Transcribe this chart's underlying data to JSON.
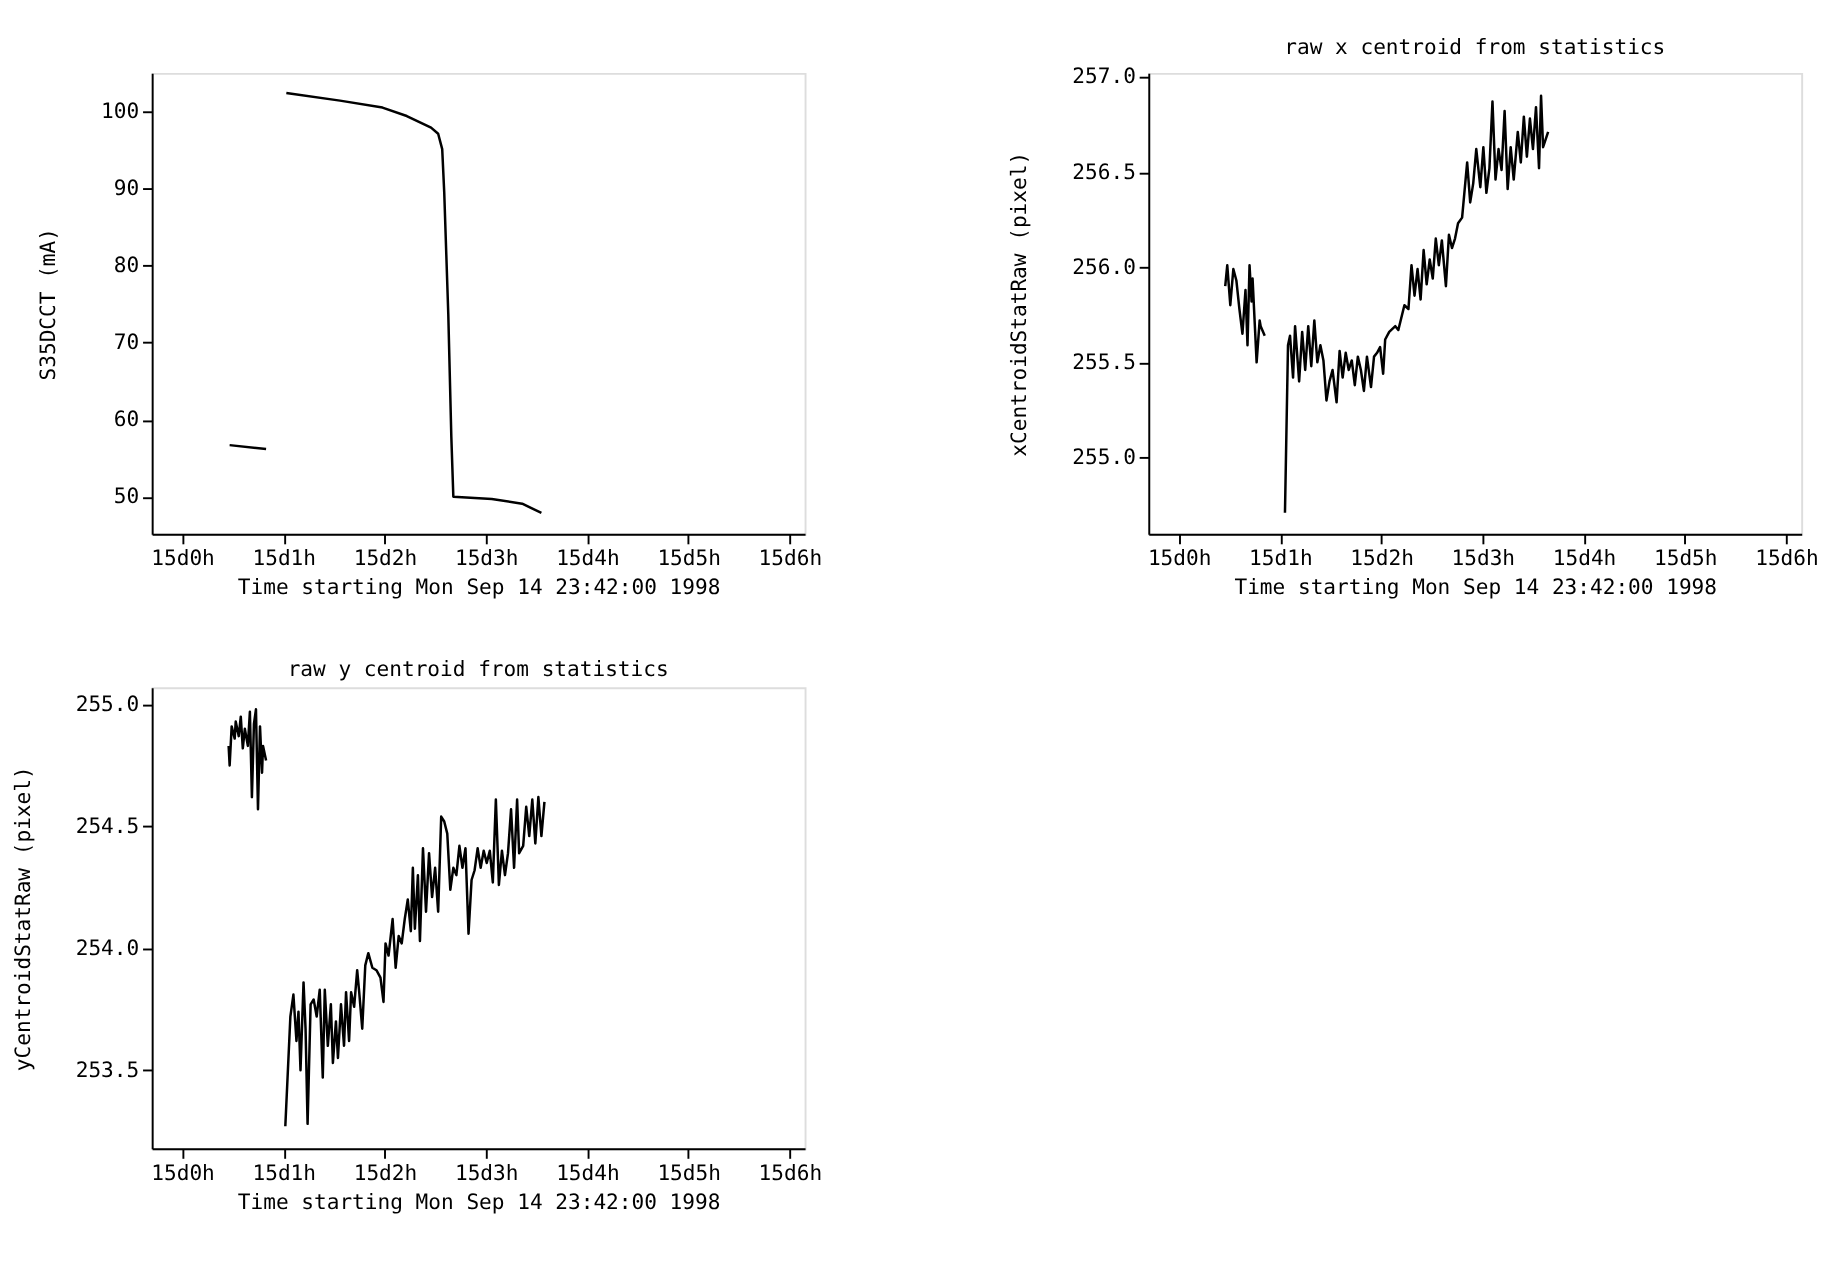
{
  "chart_data": [
    {
      "type": "line",
      "xlabel": "Time starting Mon Sep 14 23:42:00 1998",
      "ylabel": "S35DCCT (mA)",
      "xlim": [
        "1998-09-14T23:42",
        "1998-09-15T06:09"
      ],
      "ylim": [
        45.2,
        105
      ],
      "xticks": [
        {
          "value": "1998-09-15T00:00",
          "label": "15d0h"
        },
        {
          "value": "1998-09-15T01:00",
          "label": "15d1h"
        },
        {
          "value": "1998-09-15T02:00",
          "label": "15d2h"
        },
        {
          "value": "1998-09-15T03:00",
          "label": "15d3h"
        },
        {
          "value": "1998-09-15T04:00",
          "label": "15d4h"
        },
        {
          "value": "1998-09-15T05:00",
          "label": "15d5h"
        },
        {
          "value": "1998-09-15T06:00",
          "label": "15d6h"
        }
      ],
      "yticks": [
        50,
        60,
        70,
        80,
        90,
        100
      ],
      "grid": false,
      "legend": false,
      "marker": "none",
      "line_style": "solid",
      "series": [
        {
          "color": "#000000",
          "x": [
            "1998-09-15T00:28:12",
            "1998-09-15T00:49:48"
          ],
          "values": [
            56.7,
            56.2
          ]
        },
        {
          "color": "#000000",
          "x": [
            "1998-09-15T01:01:48",
            "1998-09-15T01:33:36",
            "1998-09-15T01:58:48",
            "1998-09-15T02:13:12",
            "1998-09-15T02:27:36",
            "1998-09-15T02:31:48",
            "1998-09-15T02:34:12",
            "1998-09-15T02:35:24",
            "1998-09-15T02:37:48",
            "1998-09-15T02:39:36",
            "1998-09-15T02:40:48",
            "1998-09-15T03:03:36",
            "1998-09-15T03:21:36",
            "1998-09-15T03:33:00"
          ],
          "values": [
            102.4,
            101.4,
            100.5,
            99.4,
            97.9,
            97.1,
            95.1,
            89.5,
            73.7,
            57.8,
            50.0,
            49.7,
            49.1,
            47.9
          ]
        }
      ]
    },
    {
      "type": "line",
      "title": "raw x centroid from statistics",
      "xlabel": "Time starting Mon Sep 14 23:42:00 1998",
      "ylabel": "xCentroidStatRaw (pixel)",
      "xlim": [
        "1998-09-14T23:42",
        "1998-09-15T06:09"
      ],
      "ylim": [
        254.6,
        257.02
      ],
      "xticks": [
        {
          "value": "1998-09-15T00:00",
          "label": "15d0h"
        },
        {
          "value": "1998-09-15T01:00",
          "label": "15d1h"
        },
        {
          "value": "1998-09-15T02:00",
          "label": "15d2h"
        },
        {
          "value": "1998-09-15T03:00",
          "label": "15d3h"
        },
        {
          "value": "1998-09-15T04:00",
          "label": "15d4h"
        },
        {
          "value": "1998-09-15T05:00",
          "label": "15d5h"
        },
        {
          "value": "1998-09-15T06:00",
          "label": "15d6h"
        }
      ],
      "yticks": [
        {
          "value": 255,
          "label": "255.0"
        },
        {
          "value": 255.5,
          "label": "255.5"
        },
        {
          "value": 256,
          "label": "256.0"
        },
        {
          "value": 256.5,
          "label": "256.5"
        },
        {
          "value": 257,
          "label": "257.0"
        }
      ],
      "grid": false,
      "legend": false,
      "marker": "none",
      "line_style": "solid",
      "series": [
        {
          "color": "#000000",
          "x": [
            "1998-09-15T00:27:36",
            "1998-09-15T00:28:48",
            "1998-09-15T00:30:36",
            "1998-09-15T00:32:24",
            "1998-09-15T00:34:12",
            "1998-09-15T00:36:00",
            "1998-09-15T00:37:48",
            "1998-09-15T00:39:36",
            "1998-09-15T00:40:48",
            "1998-09-15T00:42:00",
            "1998-09-15T00:43:12",
            "1998-09-15T00:43:48",
            "1998-09-15T00:46:12",
            "1998-09-15T00:48:00",
            "1998-09-15T00:48:36",
            "1998-09-15T00:51:00"
          ],
          "values": [
            255.9,
            256.01,
            255.8,
            255.99,
            255.93,
            255.78,
            255.65,
            255.88,
            255.59,
            256.01,
            255.82,
            255.94,
            255.5,
            255.72,
            255.69,
            255.64
          ]
        },
        {
          "color": "#000000",
          "x": [
            "1998-09-15T01:03:00",
            "1998-09-15T01:04:48",
            "1998-09-15T01:06:00",
            "1998-09-15T01:07:48",
            "1998-09-15T01:09:00",
            "1998-09-15T01:11:24",
            "1998-09-15T01:13:12",
            "1998-09-15T01:15:00",
            "1998-09-15T01:16:48",
            "1998-09-15T01:18:36",
            "1998-09-15T01:20:24",
            "1998-09-15T01:22:12",
            "1998-09-15T01:24:00",
            "1998-09-15T01:25:48",
            "1998-09-15T01:27:36",
            "1998-09-15T01:29:24",
            "1998-09-15T01:31:12",
            "1998-09-15T01:33:36",
            "1998-09-15T01:35:24",
            "1998-09-15T01:37:12",
            "1998-09-15T01:39:00",
            "1998-09-15T01:40:48",
            "1998-09-15T01:42:36",
            "1998-09-15T01:44:24",
            "1998-09-15T01:46:12",
            "1998-09-15T01:48:00",
            "1998-09-15T01:49:48",
            "1998-09-15T01:51:36",
            "1998-09-15T01:54:00",
            "1998-09-15T01:55:48",
            "1998-09-15T01:57:36",
            "1998-09-15T01:59:24",
            "1998-09-15T02:01:12",
            "1998-09-15T02:02:24",
            "1998-09-15T02:04:48",
            "1998-09-15T02:08:24",
            "1998-09-15T02:10:12",
            "1998-09-15T02:13:48",
            "1998-09-15T02:16:12",
            "1998-09-15T02:18:00",
            "1998-09-15T02:19:48",
            "1998-09-15T02:21:36",
            "1998-09-15T02:23:24",
            "1998-09-15T02:25:12",
            "1998-09-15T02:27:00",
            "1998-09-15T02:28:48",
            "1998-09-15T02:30:36",
            "1998-09-15T02:32:24",
            "1998-09-15T02:34:12",
            "1998-09-15T02:36:00",
            "1998-09-15T02:38:24",
            "1998-09-15T02:40:12",
            "1998-09-15T02:42:00",
            "1998-09-15T02:43:48",
            "1998-09-15T02:45:36",
            "1998-09-15T02:48:00",
            "1998-09-15T02:51:00",
            "1998-09-15T02:52:48",
            "1998-09-15T02:54:36",
            "1998-09-15T02:56:24",
            "1998-09-15T02:58:48",
            "1998-09-15T03:00:36",
            "1998-09-15T03:02:24",
            "1998-09-15T03:04:12",
            "1998-09-15T03:06:00",
            "1998-09-15T03:07:48",
            "1998-09-15T03:09:36",
            "1998-09-15T03:11:24",
            "1998-09-15T03:13:12",
            "1998-09-15T03:15:00",
            "1998-09-15T03:16:48",
            "1998-09-15T03:18:36",
            "1998-09-15T03:21:00",
            "1998-09-15T03:22:48",
            "1998-09-15T03:24:36",
            "1998-09-15T03:26:24",
            "1998-09-15T03:28:12",
            "1998-09-15T03:30:00",
            "1998-09-15T03:31:48",
            "1998-09-15T03:33:36",
            "1998-09-15T03:34:48",
            "1998-09-15T03:36:00",
            "1998-09-15T03:39:00"
          ],
          "values": [
            254.71,
            255.59,
            255.64,
            255.42,
            255.69,
            255.4,
            255.66,
            255.46,
            255.69,
            255.48,
            255.72,
            255.5,
            255.59,
            255.51,
            255.3,
            255.4,
            255.46,
            255.29,
            255.56,
            255.42,
            255.55,
            255.46,
            255.51,
            255.38,
            255.53,
            255.46,
            255.35,
            255.53,
            255.37,
            255.53,
            255.55,
            255.58,
            255.44,
            255.62,
            255.66,
            255.69,
            255.67,
            255.8,
            255.78,
            256.01,
            255.85,
            255.99,
            255.83,
            256.09,
            255.91,
            256.04,
            255.94,
            256.15,
            256.01,
            256.14,
            255.9,
            256.17,
            256.1,
            256.15,
            256.23,
            256.26,
            256.55,
            256.34,
            256.44,
            256.62,
            256.42,
            256.63,
            256.39,
            256.52,
            256.87,
            256.46,
            256.62,
            256.51,
            256.82,
            256.41,
            256.63,
            256.46,
            256.71,
            256.55,
            256.79,
            256.58,
            256.78,
            256.62,
            256.84,
            256.52,
            256.9,
            256.63,
            256.71
          ]
        }
      ]
    },
    {
      "type": "line",
      "title": "raw y centroid from statistics",
      "xlabel": "Time starting Mon Sep 14 23:42:00 1998",
      "ylabel": "yCentroidStatRaw (pixel)",
      "xlim": [
        "1998-09-14T23:42",
        "1998-09-15T06:09"
      ],
      "ylim": [
        253.18,
        255.07
      ],
      "xticks": [
        {
          "value": "1998-09-15T00:00",
          "label": "15d0h"
        },
        {
          "value": "1998-09-15T01:00",
          "label": "15d1h"
        },
        {
          "value": "1998-09-15T02:00",
          "label": "15d2h"
        },
        {
          "value": "1998-09-15T03:00",
          "label": "15d3h"
        },
        {
          "value": "1998-09-15T04:00",
          "label": "15d4h"
        },
        {
          "value": "1998-09-15T05:00",
          "label": "15d5h"
        },
        {
          "value": "1998-09-15T06:00",
          "label": "15d6h"
        }
      ],
      "yticks": [
        253.5,
        {
          "value": 254,
          "label": "254.0"
        },
        254.5,
        {
          "value": 255,
          "label": "255.0"
        }
      ],
      "grid": false,
      "legend": false,
      "marker": "none",
      "line_style": "solid",
      "series": [
        {
          "color": "#000000",
          "x": [
            "1998-09-15T00:27:36",
            "1998-09-15T00:28:12",
            "1998-09-15T00:29:24",
            "1998-09-15T00:31:12",
            "1998-09-15T00:31:48",
            "1998-09-15T00:33:36",
            "1998-09-15T00:34:48",
            "1998-09-15T00:36:00",
            "1998-09-15T00:37:12",
            "1998-09-15T00:39:00",
            "1998-09-15T00:40:12",
            "1998-09-15T00:41:24",
            "1998-09-15T00:42:36",
            "1998-09-15T00:43:48",
            "1998-09-15T00:45:00",
            "1998-09-15T00:46:12",
            "1998-09-15T00:47:24",
            "1998-09-15T00:48:00",
            "1998-09-15T00:49:48"
          ],
          "values": [
            254.83,
            254.75,
            254.91,
            254.86,
            254.93,
            254.87,
            254.95,
            254.82,
            254.9,
            254.83,
            254.97,
            254.62,
            254.92,
            254.98,
            254.57,
            254.91,
            254.72,
            254.83,
            254.77
          ]
        },
        {
          "color": "#000000",
          "x": [
            "1998-09-15T01:01:12",
            "1998-09-15T01:04:12",
            "1998-09-15T01:06:00",
            "1998-09-15T01:07:48",
            "1998-09-15T01:09:00",
            "1998-09-15T01:10:12",
            "1998-09-15T01:12:00",
            "1998-09-15T01:13:12",
            "1998-09-15T01:14:24",
            "1998-09-15T01:16:12",
            "1998-09-15T01:18:00",
            "1998-09-15T01:19:48",
            "1998-09-15T01:21:36",
            "1998-09-15T01:23:24",
            "1998-09-15T01:24:36",
            "1998-09-15T01:26:24",
            "1998-09-15T01:28:12",
            "1998-09-15T01:29:24",
            "1998-09-15T01:31:12",
            "1998-09-15T01:32:24",
            "1998-09-15T01:34:12",
            "1998-09-15T01:36:00",
            "1998-09-15T01:37:12",
            "1998-09-15T01:39:00",
            "1998-09-15T01:40:12",
            "1998-09-15T01:42:00",
            "1998-09-15T01:43:48",
            "1998-09-15T01:45:00",
            "1998-09-15T01:46:48",
            "1998-09-15T01:48:36",
            "1998-09-15T01:50:24",
            "1998-09-15T01:52:48",
            "1998-09-15T01:55:12",
            "1998-09-15T01:57:36",
            "1998-09-15T01:59:24",
            "1998-09-15T02:00:36",
            "1998-09-15T02:02:24",
            "1998-09-15T02:04:48",
            "1998-09-15T02:06:36",
            "1998-09-15T02:08:24",
            "1998-09-15T02:10:12",
            "1998-09-15T02:12:00",
            "1998-09-15T02:13:48",
            "1998-09-15T02:15:36",
            "1998-09-15T02:16:48",
            "1998-09-15T02:18:00",
            "1998-09-15T02:19:48",
            "1998-09-15T02:21:00",
            "1998-09-15T02:22:48",
            "1998-09-15T02:24:36",
            "1998-09-15T02:26:24",
            "1998-09-15T02:28:12",
            "1998-09-15T02:30:00",
            "1998-09-15T02:31:48",
            "1998-09-15T02:33:36",
            "1998-09-15T02:35:24",
            "1998-09-15T02:37:12",
            "1998-09-15T02:39:00",
            "1998-09-15T02:40:48",
            "1998-09-15T02:42:36",
            "1998-09-15T02:44:24",
            "1998-09-15T02:46:12",
            "1998-09-15T02:48:00",
            "1998-09-15T02:49:48",
            "1998-09-15T02:51:36",
            "1998-09-15T02:53:24",
            "1998-09-15T02:55:12",
            "1998-09-15T02:57:00",
            "1998-09-15T02:58:48",
            "1998-09-15T03:00:36",
            "1998-09-15T03:02:24",
            "1998-09-15T03:04:12",
            "1998-09-15T03:06:00",
            "1998-09-15T03:07:48",
            "1998-09-15T03:09:36",
            "1998-09-15T03:11:24",
            "1998-09-15T03:13:12",
            "1998-09-15T03:15:00",
            "1998-09-15T03:16:48",
            "1998-09-15T03:18:36",
            "1998-09-15T03:19:48",
            "1998-09-15T03:22:12",
            "1998-09-15T03:24:00",
            "1998-09-15T03:25:48",
            "1998-09-15T03:27:36",
            "1998-09-15T03:29:24",
            "1998-09-15T03:31:12",
            "1998-09-15T03:33:00",
            "1998-09-15T03:34:48"
          ],
          "values": [
            253.27,
            253.72,
            253.81,
            253.62,
            253.74,
            253.5,
            253.86,
            253.67,
            253.28,
            253.77,
            253.79,
            253.72,
            253.83,
            253.47,
            253.83,
            253.6,
            253.77,
            253.53,
            253.7,
            253.55,
            253.77,
            253.6,
            253.82,
            253.62,
            253.82,
            253.76,
            253.91,
            253.82,
            253.67,
            253.93,
            253.98,
            253.92,
            253.91,
            253.88,
            253.78,
            254.02,
            253.97,
            254.12,
            253.92,
            254.05,
            254.02,
            254.12,
            254.2,
            254.07,
            254.33,
            254.08,
            254.3,
            254.03,
            254.41,
            254.15,
            254.39,
            254.21,
            254.33,
            254.15,
            254.54,
            254.52,
            254.47,
            254.24,
            254.33,
            254.3,
            254.42,
            254.33,
            254.41,
            254.06,
            254.28,
            254.32,
            254.41,
            254.33,
            254.4,
            254.35,
            254.4,
            254.27,
            254.61,
            254.26,
            254.4,
            254.3,
            254.39,
            254.57,
            254.33,
            254.61,
            254.39,
            254.42,
            254.58,
            254.46,
            254.61,
            254.43,
            254.62,
            254.46,
            254.6
          ]
        }
      ]
    }
  ]
}
